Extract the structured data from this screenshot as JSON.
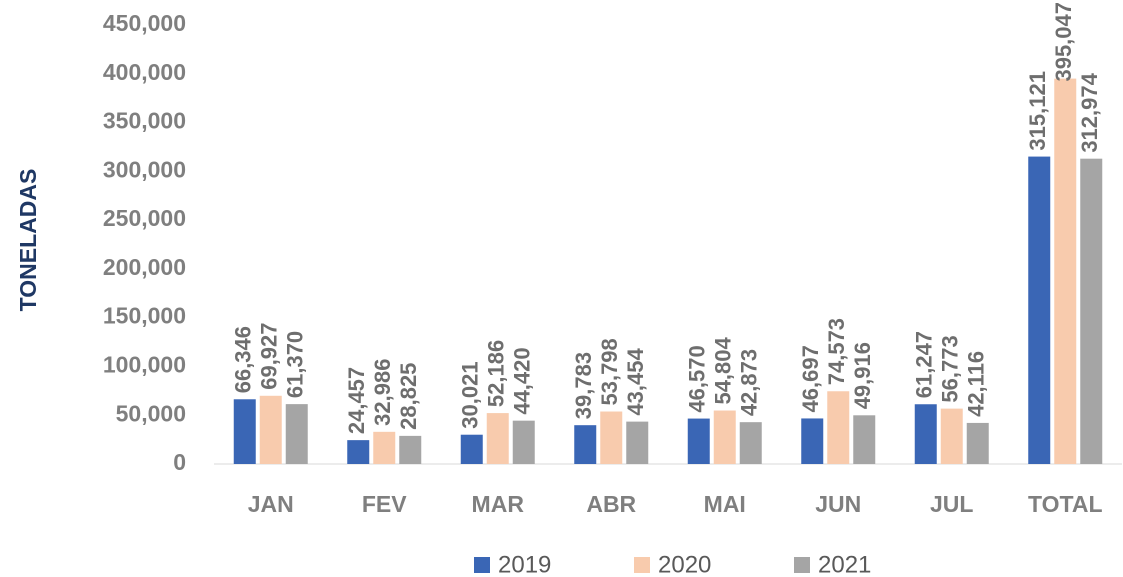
{
  "chart_data": {
    "type": "bar",
    "y_label": "TONELADAS",
    "categories": [
      "JAN",
      "FEV",
      "MAR",
      "ABR",
      "MAI",
      "JUN",
      "JUL",
      "TOTAL"
    ],
    "series": [
      {
        "name": "2019",
        "color": "#3a66b5",
        "values": [
          66346,
          24457,
          30021,
          39783,
          46570,
          46697,
          61247,
          315121
        ],
        "value_labels": [
          "66,346",
          "24,457",
          "30,021",
          "39,783",
          "46,570",
          "46,697",
          "61,247",
          "315,121"
        ]
      },
      {
        "name": "2020",
        "color": "#f8cbad",
        "values": [
          69927,
          32986,
          52186,
          53798,
          54804,
          74573,
          56773,
          395047
        ],
        "value_labels": [
          "69,927",
          "32,986",
          "52,186",
          "53,798",
          "54,804",
          "74,573",
          "56,773",
          "395,047"
        ]
      },
      {
        "name": "2021",
        "color": "#a5a5a5",
        "values": [
          61370,
          28825,
          44420,
          43454,
          42873,
          49916,
          42116,
          312974
        ],
        "value_labels": [
          "61,370",
          "28,825",
          "44,420",
          "43,454",
          "42,873",
          "49,916",
          "42,116",
          "312,974"
        ]
      }
    ],
    "ylim": [
      0,
      450000
    ],
    "yticks": [
      0,
      {
        "value": 50000,
        "label": "50,000"
      },
      {
        "value": 100000,
        "label": "100,000"
      },
      {
        "value": 150000,
        "label": "150,000"
      },
      {
        "value": 200000,
        "label": "200,000"
      },
      {
        "value": 250000,
        "label": "250,000"
      },
      {
        "value": 300000,
        "label": "300,000"
      },
      {
        "value": 350000,
        "label": "350,000"
      },
      {
        "value": 400000,
        "label": "400,000"
      },
      {
        "value": 450000,
        "label": "450,000"
      }
    ],
    "grid": false,
    "legend": "bottom"
  }
}
